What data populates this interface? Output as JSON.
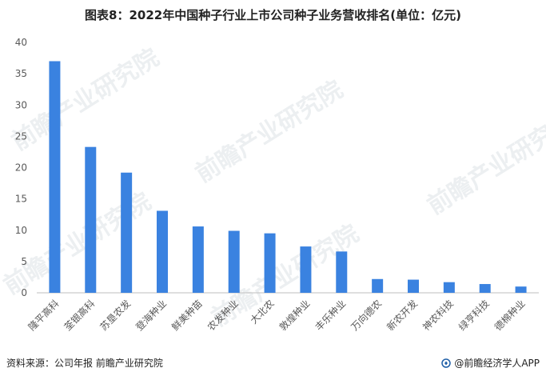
{
  "title": "图表8：2022年中国种子行业上市公司种子业务营收排名(单位：亿元)",
  "source": "资料来源：公司年报 前瞻产业研究院",
  "credit": "@前瞻经济学人APP",
  "watermark": "前瞻产业研究院",
  "colors": {
    "bar": "#3a82e0",
    "axis": "#bfbfbf",
    "text": "#595959"
  },
  "chart_data": {
    "type": "bar",
    "categories": [
      "隆平高科",
      "荃银高科",
      "苏垦农发",
      "登海种业",
      "鲜美种苗",
      "农发种业",
      "大北农",
      "敦煌种业",
      "丰乐种业",
      "万向德农",
      "新农开发",
      "神农科技",
      "绿亨科技",
      "德棉种业"
    ],
    "values": [
      37.0,
      23.3,
      19.2,
      13.1,
      10.6,
      9.9,
      9.5,
      7.4,
      6.6,
      2.2,
      2.1,
      1.7,
      1.4,
      1.0
    ],
    "ylim": [
      0,
      40
    ],
    "yticks": [
      0,
      5,
      10,
      15,
      20,
      25,
      30,
      35,
      40
    ],
    "grid": false
  }
}
